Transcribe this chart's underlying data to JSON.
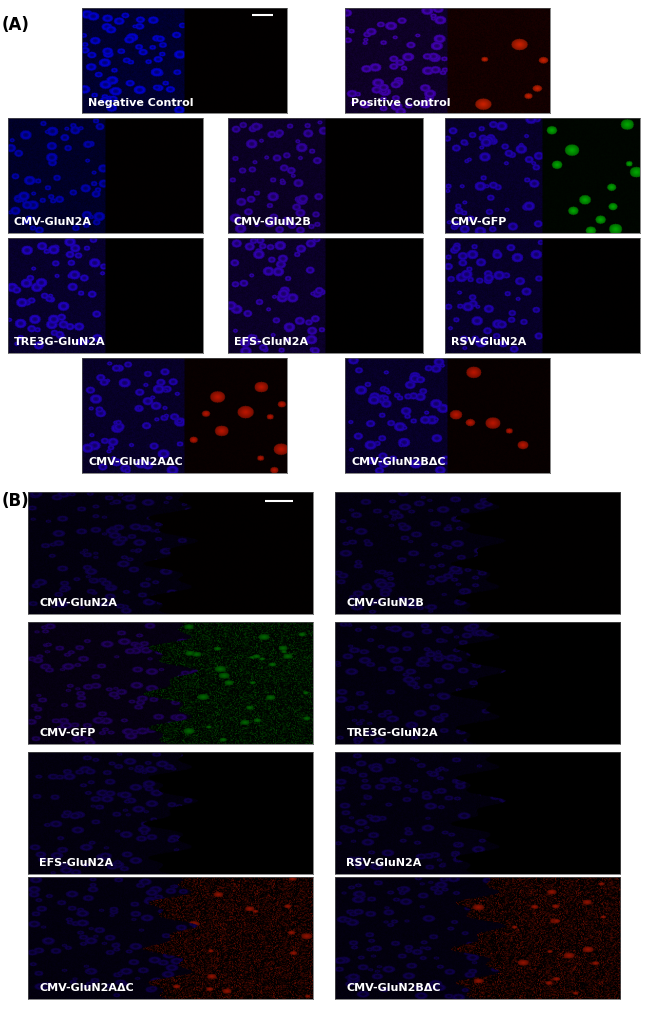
{
  "panel_A_label": "(A)",
  "panel_B_label": "(B)",
  "fig_w": 6.5,
  "fig_h": 10.22,
  "dpi": 100,
  "section_A": {
    "row0": [
      {
        "label": "Negative Control",
        "lc": "#0000dd",
        "rc": "#150000",
        "rb": false,
        "rbc": null,
        "seed": 1,
        "sb": true
      },
      {
        "label": "Positive Control",
        "lc": "#4400bb",
        "rc": "#aa0000",
        "rb": true,
        "rbc": "#cc2000",
        "seed": 2,
        "sb": false
      }
    ],
    "row1": [
      {
        "label": "CMV-GluN2A",
        "lc": "#0000bb",
        "rc": "#120000",
        "rb": false,
        "rbc": null,
        "seed": 3,
        "sb": false
      },
      {
        "label": "CMV-GluN2B",
        "lc": "#3300aa",
        "rc": "#100000",
        "rb": false,
        "rbc": null,
        "seed": 4,
        "sb": false
      },
      {
        "label": "CMV-GFP",
        "lc": "#2200bb",
        "rc": "#003300",
        "rb": true,
        "rbc": "#00aa00",
        "seed": 5,
        "sb": false
      }
    ],
    "row2": [
      {
        "label": "TRE3G-GluN2A",
        "lc": "#2200cc",
        "rc": "#0a0000",
        "rb": false,
        "rbc": null,
        "seed": 6,
        "sb": false
      },
      {
        "label": "EFS-GluN2A",
        "lc": "#3300bb",
        "rc": "#0a0000",
        "rb": false,
        "rbc": null,
        "seed": 7,
        "sb": false
      },
      {
        "label": "RSV-GluN2A",
        "lc": "#2200bb",
        "rc": "#0a0000",
        "rb": false,
        "rbc": null,
        "seed": 8,
        "sb": false
      }
    ],
    "row3": [
      {
        "label": "CMV-GluN2AΔC",
        "lc": "#2200bb",
        "rc": "#440000",
        "rb": true,
        "rbc": "#bb1500",
        "seed": 9,
        "sb": false
      },
      {
        "label": "CMV-GluN2BΔC",
        "lc": "#2200bb",
        "rc": "#440000",
        "rb": true,
        "rbc": "#bb1500",
        "seed": 10,
        "sb": false
      }
    ]
  },
  "section_B": {
    "row0": [
      {
        "label": "CMV-GluN2A",
        "lc": "#110055",
        "rc": "#1a0000",
        "rb": false,
        "rbc": null,
        "seed": 11,
        "sb": true
      },
      {
        "label": "CMV-GluN2B",
        "lc": "#110055",
        "rc": "#100000",
        "rb": false,
        "rbc": null,
        "seed": 12,
        "sb": false
      }
    ],
    "row1": [
      {
        "label": "CMV-GFP",
        "lc": "#220066",
        "rc": "#003800",
        "rb": true,
        "rbc": "#007700",
        "seed": 13,
        "sb": false
      },
      {
        "label": "TRE3G-GluN2A",
        "lc": "#110055",
        "rc": "#0a0000",
        "rb": false,
        "rbc": null,
        "seed": 14,
        "sb": false
      }
    ],
    "row2": [
      {
        "label": "EFS-GluN2A",
        "lc": "#110055",
        "rc": "#080000",
        "rb": false,
        "rbc": null,
        "seed": 15,
        "sb": false
      },
      {
        "label": "RSV-GluN2A",
        "lc": "#110055",
        "rc": "#080000",
        "rb": false,
        "rbc": null,
        "seed": 16,
        "sb": false
      }
    ],
    "row3": [
      {
        "label": "CMV-GluN2AΔC",
        "lc": "#110055",
        "rc": "#220000",
        "rb": true,
        "rbc": "#aa1500",
        "seed": 17,
        "sb": false
      },
      {
        "label": "CMV-GluN2BΔC",
        "lc": "#110055",
        "rc": "#220000",
        "rb": true,
        "rbc": "#aa1500",
        "seed": 18,
        "sb": false
      }
    ]
  },
  "text_color": "#ffffff",
  "lfs_A": 8,
  "lfs_B": 8,
  "plfs": 12
}
